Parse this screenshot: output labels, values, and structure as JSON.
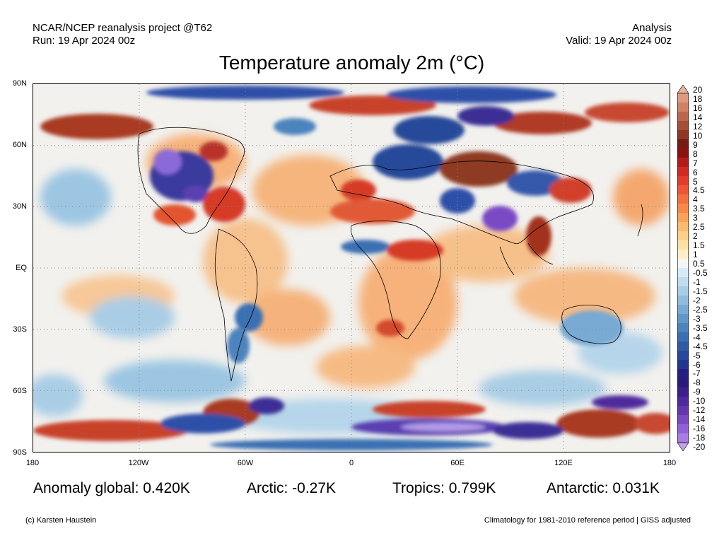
{
  "header": {
    "project": "NCAR/NCEP reanalysis project @T62",
    "run": "Run: 19 Apr 2024 00z",
    "type": "Analysis",
    "valid": "Valid: 19 Apr 2024 00z"
  },
  "title": "Temperature anomaly 2m (°C)",
  "map": {
    "lat_labels": [
      "90N",
      "60N",
      "30N",
      "EQ",
      "30S",
      "60S",
      "90S"
    ],
    "lon_labels": [
      "180",
      "120W",
      "60W",
      "0",
      "60E",
      "120E",
      "180"
    ],
    "grid": "dotted",
    "colors": {
      "strong_warm": "#8a2b1a",
      "warm": "#d9472f",
      "mild_warm": "#f4b27a",
      "neutral": "#f3f3f3",
      "cool": "#9cc6e2",
      "cold": "#2f4fa8",
      "extreme_cold": "#9a7be6",
      "coastline": "#000000"
    }
  },
  "colorbar": {
    "labels": [
      "20",
      "18",
      "16",
      "14",
      "12",
      "10",
      "9",
      "8",
      "7",
      "6",
      "5",
      "4.5",
      "4",
      "3.5",
      "3",
      "2.5",
      "2",
      "1.5",
      "1",
      "0.5",
      "-0.5",
      "-1",
      "-1.5",
      "-2",
      "-2.5",
      "-3",
      "-3.5",
      "-4",
      "-4.5",
      "-5",
      "-6",
      "-7",
      "-8",
      "-9",
      "-10",
      "-12",
      "-14",
      "-16",
      "-18",
      "-20"
    ],
    "colors": [
      "#e9b3a0",
      "#dc9a80",
      "#cf8266",
      "#b9664c",
      "#a44f37",
      "#8d3724",
      "#751b14",
      "#8e1111",
      "#b31b1b",
      "#d02a22",
      "#e23b2b",
      "#ec5536",
      "#f26f3f",
      "#f5894a",
      "#f8a25a",
      "#fabb70",
      "#fcd08a",
      "#fde0a6",
      "#feeec8",
      "#f5f5f5",
      "#d6ebf7",
      "#c0dcee",
      "#a9cde5",
      "#91bcdc",
      "#78aad3",
      "#6197c8",
      "#4c83bd",
      "#3b6fb2",
      "#2f5ba5",
      "#27489a",
      "#22368f",
      "#251f84",
      "#2c1a7a",
      "#3b1f8b",
      "#4f2a9c",
      "#6336b0",
      "#7a49c4",
      "#9160d6",
      "#a97ce2",
      "#c3a2ee"
    ]
  },
  "stats": {
    "global": "Anomaly global: 0.420K",
    "arctic": "Arctic: -0.27K",
    "tropics": "Tropics: 0.799K",
    "antarctic": "Antarctic: 0.031K"
  },
  "footer": {
    "credit": "(c) Karsten Haustein",
    "note": "Climatology for 1981-2010 reference period | GISS adjusted"
  }
}
